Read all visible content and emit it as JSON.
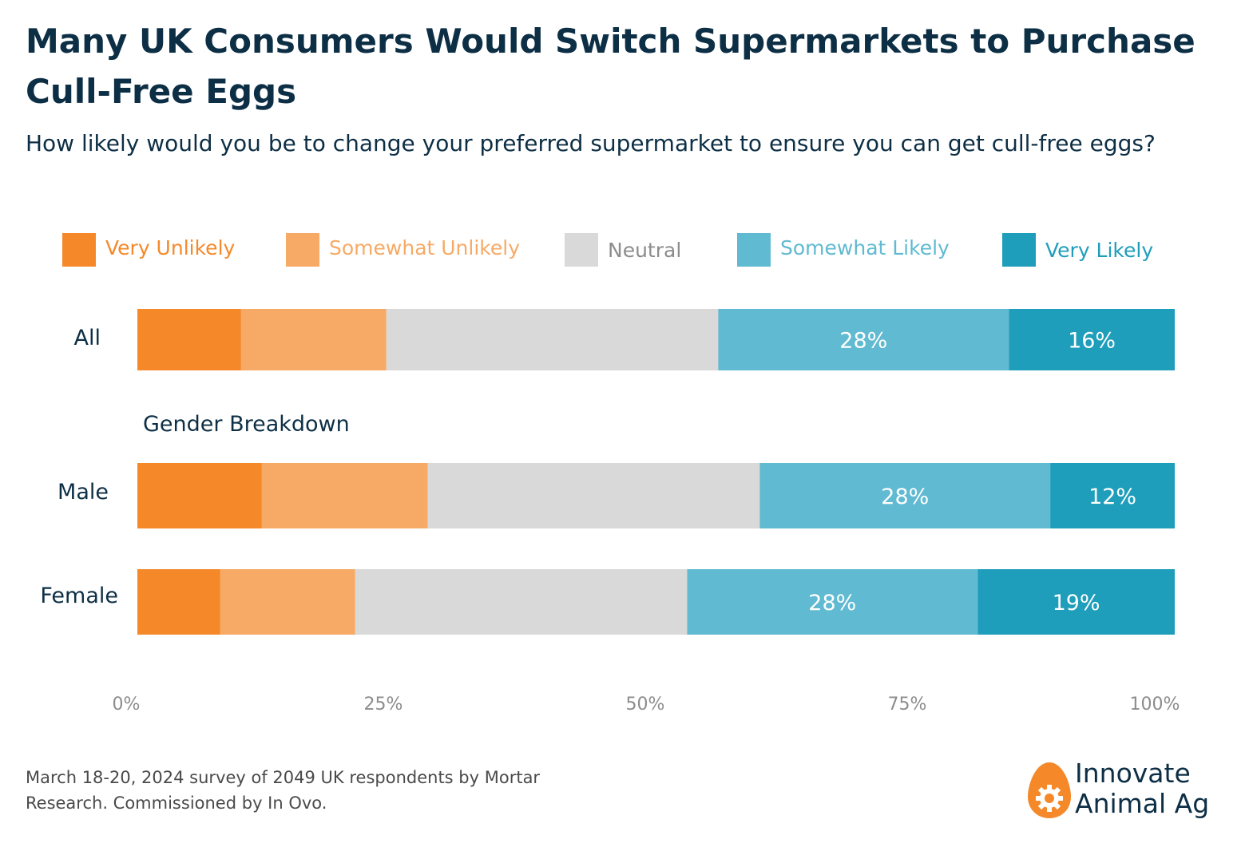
{
  "title": "Many UK Consumers Would Switch Supermarkets to Purchase Cull-Free Eggs",
  "subtitle": "How likely would you be to change your preferred supermarket to ensure you can get cull-free eggs?",
  "colors": {
    "very_unlikely": "#f5892a",
    "somewhat_unlikely": "#f6aa66",
    "neutral": "#d9d9d9",
    "somewhat_likely": "#60bad1",
    "very_likely": "#1e9ebb",
    "title": "#0d2f45",
    "tick": "#8c8c8c"
  },
  "chart_data": {
    "type": "bar",
    "orientation": "horizontal",
    "stacked": true,
    "categories": [
      "All",
      "Male",
      "Female"
    ],
    "group_heading": "Gender Breakdown",
    "series": [
      {
        "name": "Very Unlikely",
        "values": [
          10,
          12,
          8
        ]
      },
      {
        "name": "Somewhat Unlikely",
        "values": [
          14,
          16,
          13
        ]
      },
      {
        "name": "Neutral",
        "values": [
          32,
          32,
          32
        ]
      },
      {
        "name": "Somewhat Likely",
        "values": [
          28,
          28,
          28
        ]
      },
      {
        "name": "Very Likely",
        "values": [
          16,
          12,
          19
        ]
      }
    ],
    "data_labels": [
      [
        null,
        null,
        null,
        "28%",
        "16%"
      ],
      [
        null,
        null,
        null,
        "28%",
        "12%"
      ],
      [
        null,
        null,
        null,
        "28%",
        "19%"
      ]
    ],
    "xlim": [
      0,
      100
    ],
    "x_ticks": [
      "0%",
      "25%",
      "50%",
      "75%",
      "100%"
    ],
    "grid": false,
    "legend_position": "top"
  },
  "footnote": "March 18-20, 2024 survey of 2049 UK respondents by Mortar Research. Commissioned by In Ovo.",
  "logo": {
    "line1": "Innovate",
    "line2": "Animal Ag"
  }
}
